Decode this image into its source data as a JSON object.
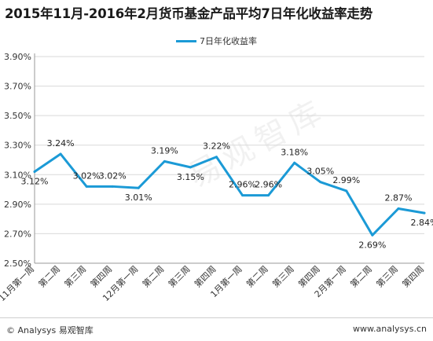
{
  "chart_data": {
    "type": "line",
    "title": "2015年11月-2016年2月货币基金产品平均7日年化收益率走势",
    "categories": [
      "11月第一周",
      "第二周",
      "第三周",
      "第四周",
      "12月第一周",
      "第二周",
      "第三周",
      "第四周",
      "1月第一周",
      "第二周",
      "第三周",
      "第四周",
      "2月第一周",
      "第二周",
      "第三周",
      "第四周"
    ],
    "series": [
      {
        "name": "7日年化收益率",
        "values": [
          3.12,
          3.24,
          3.02,
          3.02,
          3.01,
          3.19,
          3.15,
          3.22,
          2.96,
          2.96,
          3.18,
          3.05,
          2.99,
          2.69,
          2.87,
          2.84
        ]
      }
    ],
    "value_labels": [
      "3.12%",
      "3.24%",
      "3.02%",
      "3.02%",
      "3.01%",
      "3.19%",
      "3.15%",
      "3.22%",
      "2.96%",
      "2.96%",
      "3.18%",
      "3.05%",
      "2.99%",
      "2.69%",
      "2.87%",
      "2.84%"
    ],
    "yticks": [
      "2.50%",
      "2.70%",
      "2.90%",
      "3.10%",
      "3.30%",
      "3.50%",
      "3.70%",
      "3.90%"
    ],
    "ylim": [
      2.5,
      3.9
    ],
    "grid": true,
    "legend_position": "top-center",
    "color": "#1b9ad6"
  },
  "footer": {
    "left": "© Analysys 易观智库",
    "right": "www.analysys.cn"
  },
  "watermark": "易观智库"
}
